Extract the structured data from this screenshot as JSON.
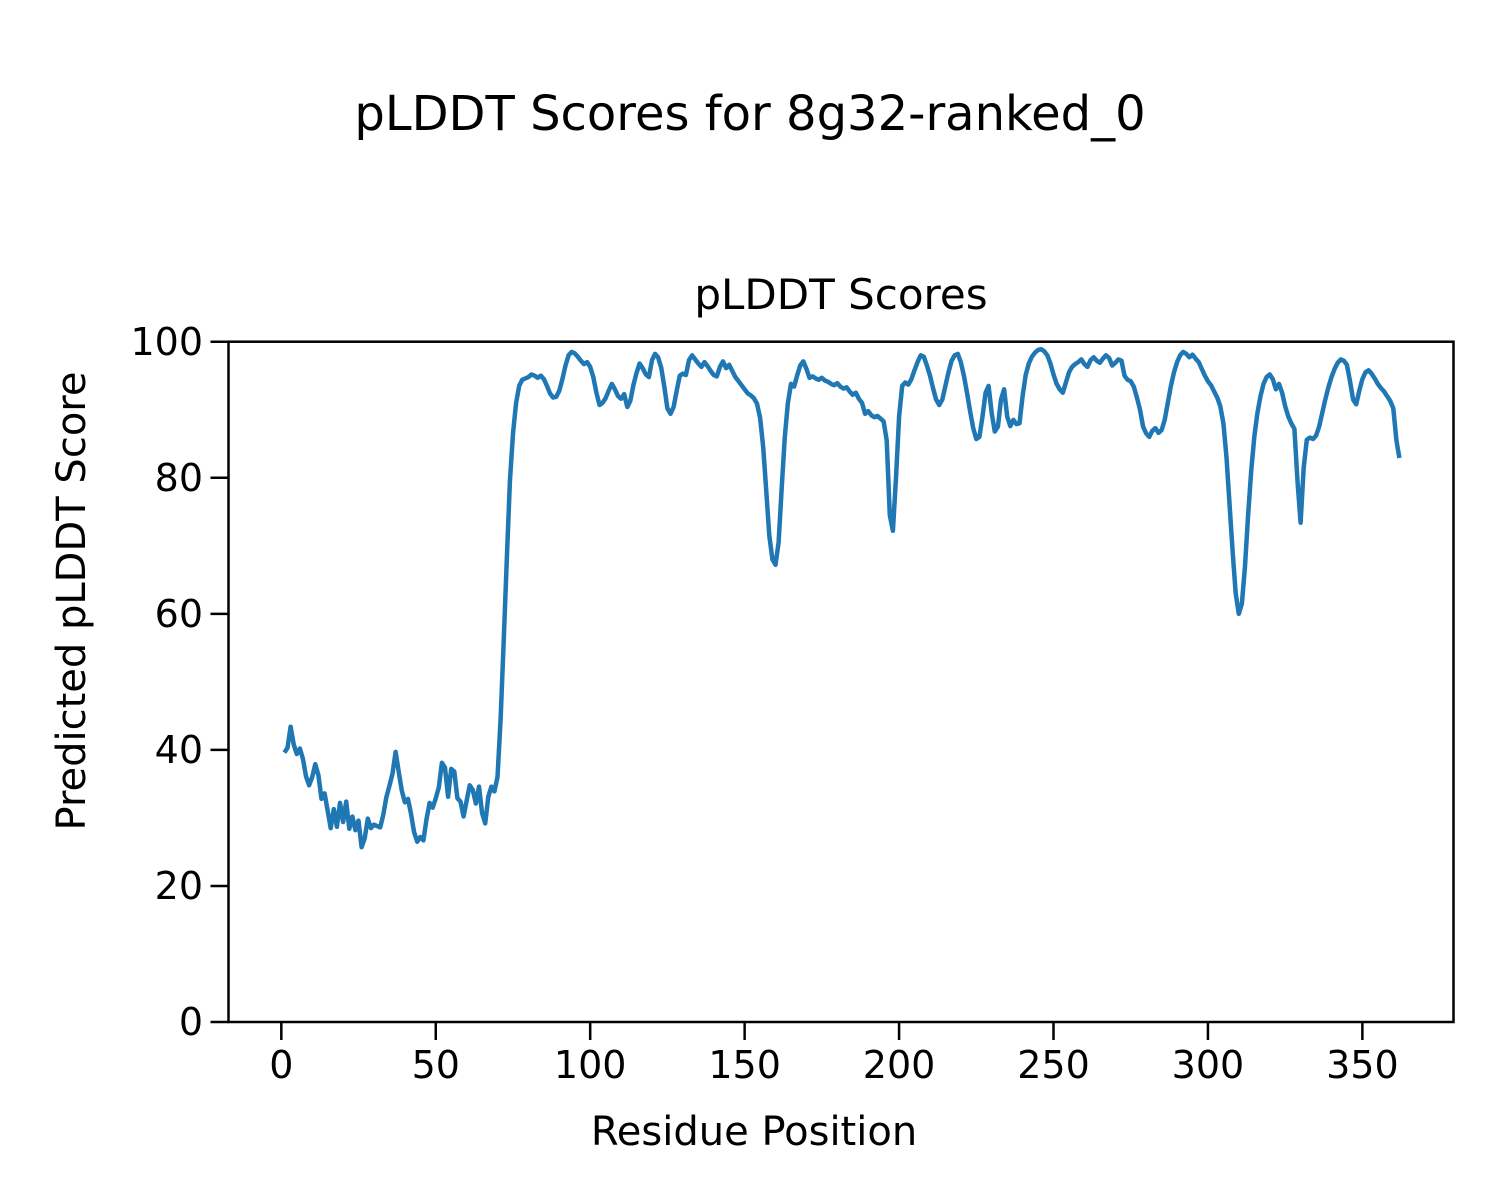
{
  "figure": {
    "suptitle": "pLDDT Scores for 8g32-ranked_0",
    "background_color": "#ffffff",
    "spine_color": "#000000"
  },
  "chart_data": {
    "type": "line",
    "title": "pLDDT Scores",
    "xlabel": "Residue Position",
    "ylabel": "Predicted pLDDT Score",
    "xlim": [
      -17.1,
      379.5
    ],
    "ylim": [
      0,
      100
    ],
    "xticks": [
      0,
      50,
      100,
      150,
      200,
      250,
      300,
      350
    ],
    "yticks": [
      0,
      20,
      40,
      60,
      80,
      100
    ],
    "grid": false,
    "legend": "none",
    "series": [
      {
        "name": "pLDDT",
        "color": "#1f77b4",
        "linewidth": 4.5,
        "x_start": 1,
        "x_step": 1,
        "values": [
          39.6,
          40.3,
          43.4,
          40.8,
          39.4,
          40.2,
          38.7,
          36.1,
          34.8,
          36.0,
          37.9,
          36.3,
          32.8,
          33.6,
          31.1,
          28.5,
          31.3,
          28.7,
          32.2,
          29.4,
          32.4,
          28.4,
          30.2,
          28.2,
          29.6,
          25.7,
          27.0,
          29.9,
          28.5,
          29.0,
          28.8,
          28.6,
          30.4,
          33.0,
          34.7,
          36.5,
          39.7,
          36.8,
          34.0,
          32.3,
          32.8,
          30.6,
          27.9,
          26.5,
          27.2,
          26.7,
          29.8,
          32.2,
          31.5,
          32.9,
          34.5,
          38.1,
          37.4,
          33.1,
          37.2,
          36.8,
          32.9,
          32.4,
          30.2,
          32.5,
          34.8,
          34.1,
          32.1,
          34.6,
          30.7,
          29.2,
          33.1,
          34.6,
          33.9,
          36.0,
          44.5,
          56.0,
          68.0,
          79.5,
          86.5,
          91.0,
          93.5,
          94.4,
          94.6,
          94.8,
          95.2,
          95.0,
          94.7,
          95.0,
          94.5,
          93.5,
          92.4,
          91.8,
          91.9,
          92.8,
          94.5,
          96.5,
          98.0,
          98.5,
          98.3,
          97.8,
          97.2,
          96.7,
          97.0,
          96.3,
          94.8,
          92.5,
          90.7,
          91.0,
          91.7,
          92.8,
          93.8,
          93.0,
          92.0,
          91.6,
          92.3,
          90.4,
          91.3,
          93.6,
          95.4,
          96.8,
          96.1,
          95.2,
          94.8,
          97.3,
          98.2,
          97.7,
          96.2,
          93.4,
          90.2,
          89.4,
          90.4,
          92.8,
          95.0,
          95.3,
          95.1,
          97.3,
          98.0,
          97.4,
          96.8,
          96.3,
          97.0,
          96.4,
          95.7,
          95.1,
          94.9,
          96.3,
          97.1,
          96.1,
          96.6,
          95.7,
          94.8,
          94.2,
          93.6,
          93.0,
          92.4,
          92.1,
          91.7,
          90.9,
          88.8,
          84.5,
          78.0,
          71.5,
          68.0,
          67.2,
          70.5,
          78.5,
          86.0,
          91.0,
          93.8,
          93.4,
          95.0,
          96.5,
          97.1,
          96.0,
          94.7,
          94.9,
          94.6,
          94.4,
          94.7,
          94.3,
          94.1,
          93.8,
          93.6,
          93.9,
          93.4,
          93.1,
          93.3,
          92.7,
          92.2,
          92.5,
          91.6,
          91.0,
          89.4,
          89.8,
          89.2,
          88.9,
          89.1,
          88.7,
          88.3,
          85.5,
          74.5,
          72.2,
          80.0,
          89.0,
          93.5,
          94.0,
          93.7,
          94.5,
          95.8,
          97.0,
          98.0,
          97.8,
          96.5,
          95.0,
          93.2,
          91.5,
          90.7,
          91.5,
          93.5,
          95.5,
          97.2,
          98.0,
          98.2,
          97.0,
          95.0,
          92.5,
          89.8,
          87.3,
          85.7,
          86.0,
          89.0,
          92.5,
          93.5,
          89.5,
          86.8,
          87.5,
          91.5,
          93.0,
          89.0,
          87.6,
          88.5,
          87.9,
          88.0,
          92.0,
          95.1,
          96.8,
          97.8,
          98.4,
          98.8,
          98.9,
          98.6,
          98.0,
          96.8,
          95.2,
          93.8,
          93.0,
          92.5,
          94.0,
          95.5,
          96.3,
          96.7,
          97.0,
          97.4,
          96.7,
          96.3,
          97.3,
          97.7,
          97.2,
          96.9,
          97.5,
          98.0,
          97.6,
          96.5,
          96.9,
          97.4,
          97.2,
          95.0,
          94.4,
          94.2,
          93.4,
          91.8,
          90.0,
          87.5,
          86.5,
          86.0,
          86.9,
          87.3,
          86.6,
          87.0,
          88.5,
          91.0,
          93.5,
          95.5,
          97.0,
          98.0,
          98.5,
          98.2,
          97.7,
          98.1,
          97.5,
          97.0,
          96.0,
          95.0,
          94.2,
          93.6,
          92.7,
          91.8,
          90.5,
          88.0,
          83.0,
          76.0,
          69.0,
          63.0,
          60.0,
          61.5,
          67.0,
          74.5,
          81.0,
          86.0,
          89.5,
          92.0,
          93.8,
          94.8,
          95.2,
          94.5,
          93.0,
          93.8,
          92.5,
          90.5,
          89.0,
          88.0,
          87.2,
          79.5,
          73.4,
          81.5,
          85.6,
          85.9,
          85.7,
          86.2,
          87.5,
          89.5,
          91.5,
          93.3,
          94.8,
          96.0,
          96.9,
          97.4,
          97.2,
          96.6,
          94.2,
          91.5,
          90.8,
          92.8,
          94.5,
          95.5,
          95.8,
          95.3,
          94.6,
          93.8,
          93.2,
          92.7,
          92.0,
          91.3,
          90.2,
          85.5,
          82.9
        ]
      }
    ]
  }
}
